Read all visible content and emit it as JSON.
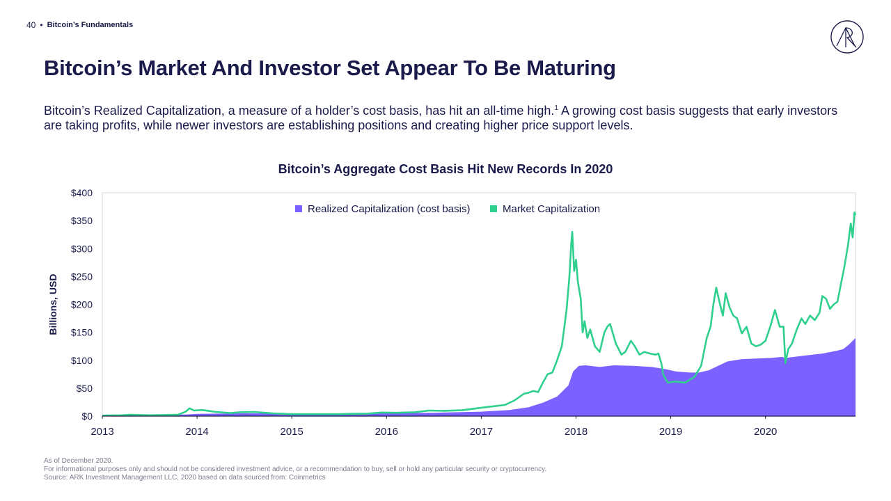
{
  "header": {
    "page_number": "40",
    "separator": "•",
    "section": "Bitcoin’s Fundamentals",
    "logo_icon": "ark-logo-icon"
  },
  "title": "Bitcoin’s Market And Investor Set Appear To Be Maturing",
  "description": {
    "text_before": "Bitcoin’s Realized Capitalization, a measure of a holder’s cost basis, has hit an all-time high.",
    "footnote_marker": "1",
    "text_after": " A growing cost basis suggests that early investors are taking profits, while newer investors are establishing positions and creating higher price support levels."
  },
  "chart_data": {
    "type": "area",
    "title": "Bitcoin’s Aggregate Cost Basis Hit New Records In 2020",
    "xlabel": "",
    "ylabel": "Billions, USD",
    "x_tick_labels": [
      "2013",
      "2014",
      "2015",
      "2016",
      "2017",
      "2018",
      "2019",
      "2020"
    ],
    "y_tick_labels": [
      "$0",
      "$50",
      "$100",
      "$150",
      "$200",
      "$250",
      "$300",
      "$350",
      "$400"
    ],
    "xlim": [
      2013.0,
      2020.95
    ],
    "ylim": [
      0,
      400
    ],
    "grid": false,
    "legend_position": "top-center",
    "series": [
      {
        "name": "Realized Capitalization (cost basis)",
        "style": "area",
        "color": "#7b61ff",
        "points": [
          [
            2013.0,
            1
          ],
          [
            2013.5,
            1.5
          ],
          [
            2013.9,
            3
          ],
          [
            2014.0,
            4
          ],
          [
            2014.5,
            5
          ],
          [
            2015.0,
            4.5
          ],
          [
            2015.5,
            4
          ],
          [
            2016.0,
            5
          ],
          [
            2016.5,
            6
          ],
          [
            2017.0,
            8
          ],
          [
            2017.3,
            11
          ],
          [
            2017.5,
            16
          ],
          [
            2017.65,
            24
          ],
          [
            2017.8,
            35
          ],
          [
            2017.92,
            55
          ],
          [
            2017.97,
            80
          ],
          [
            2018.03,
            90
          ],
          [
            2018.1,
            91
          ],
          [
            2018.25,
            88
          ],
          [
            2018.4,
            91
          ],
          [
            2018.6,
            90
          ],
          [
            2018.8,
            88
          ],
          [
            2018.95,
            84
          ],
          [
            2019.05,
            80
          ],
          [
            2019.2,
            78
          ],
          [
            2019.3,
            78
          ],
          [
            2019.4,
            82
          ],
          [
            2019.5,
            90
          ],
          [
            2019.6,
            98
          ],
          [
            2019.75,
            102
          ],
          [
            2019.9,
            103
          ],
          [
            2020.05,
            104
          ],
          [
            2020.18,
            106
          ],
          [
            2020.21,
            103
          ],
          [
            2020.25,
            105
          ],
          [
            2020.4,
            108
          ],
          [
            2020.6,
            112
          ],
          [
            2020.75,
            117
          ],
          [
            2020.82,
            120
          ],
          [
            2020.88,
            128
          ],
          [
            2020.95,
            140
          ]
        ]
      },
      {
        "name": "Market Capitalization",
        "style": "line",
        "color": "#2fd08e",
        "points": [
          [
            2013.0,
            1
          ],
          [
            2013.2,
            1.5
          ],
          [
            2013.3,
            2.5
          ],
          [
            2013.5,
            1.5
          ],
          [
            2013.8,
            2.5
          ],
          [
            2013.88,
            8
          ],
          [
            2013.92,
            14
          ],
          [
            2013.97,
            10
          ],
          [
            2014.05,
            11
          ],
          [
            2014.2,
            7.5
          ],
          [
            2014.35,
            5.5
          ],
          [
            2014.45,
            7
          ],
          [
            2014.6,
            7.5
          ],
          [
            2014.8,
            5
          ],
          [
            2015.0,
            3.5
          ],
          [
            2015.3,
            3.5
          ],
          [
            2015.5,
            3.5
          ],
          [
            2015.6,
            4
          ],
          [
            2015.8,
            4.5
          ],
          [
            2015.95,
            6.5
          ],
          [
            2016.1,
            6
          ],
          [
            2016.3,
            7
          ],
          [
            2016.45,
            10
          ],
          [
            2016.6,
            9.5
          ],
          [
            2016.8,
            10.5
          ],
          [
            2016.95,
            14
          ],
          [
            2017.05,
            16
          ],
          [
            2017.15,
            18
          ],
          [
            2017.25,
            20
          ],
          [
            2017.35,
            28
          ],
          [
            2017.45,
            40
          ],
          [
            2017.5,
            42
          ],
          [
            2017.55,
            45
          ],
          [
            2017.6,
            43
          ],
          [
            2017.65,
            60
          ],
          [
            2017.7,
            75
          ],
          [
            2017.75,
            78
          ],
          [
            2017.8,
            100
          ],
          [
            2017.85,
            125
          ],
          [
            2017.9,
            190
          ],
          [
            2017.93,
            250
          ],
          [
            2017.95,
            310
          ],
          [
            2017.96,
            330
          ],
          [
            2017.98,
            260
          ],
          [
            2018.0,
            280
          ],
          [
            2018.02,
            240
          ],
          [
            2018.05,
            210
          ],
          [
            2018.07,
            150
          ],
          [
            2018.09,
            170
          ],
          [
            2018.12,
            140
          ],
          [
            2018.15,
            155
          ],
          [
            2018.2,
            125
          ],
          [
            2018.25,
            115
          ],
          [
            2018.3,
            150
          ],
          [
            2018.33,
            160
          ],
          [
            2018.36,
            165
          ],
          [
            2018.42,
            130
          ],
          [
            2018.48,
            110
          ],
          [
            2018.52,
            115
          ],
          [
            2018.58,
            135
          ],
          [
            2018.62,
            125
          ],
          [
            2018.67,
            110
          ],
          [
            2018.72,
            115
          ],
          [
            2018.78,
            112
          ],
          [
            2018.84,
            110
          ],
          [
            2018.87,
            112
          ],
          [
            2018.9,
            95
          ],
          [
            2018.92,
            75
          ],
          [
            2018.95,
            65
          ],
          [
            2018.97,
            60
          ],
          [
            2019.05,
            62
          ],
          [
            2019.15,
            60
          ],
          [
            2019.25,
            70
          ],
          [
            2019.32,
            90
          ],
          [
            2019.38,
            140
          ],
          [
            2019.42,
            160
          ],
          [
            2019.45,
            200
          ],
          [
            2019.48,
            230
          ],
          [
            2019.52,
            200
          ],
          [
            2019.55,
            180
          ],
          [
            2019.58,
            220
          ],
          [
            2019.62,
            195
          ],
          [
            2019.66,
            180
          ],
          [
            2019.7,
            175
          ],
          [
            2019.75,
            148
          ],
          [
            2019.8,
            160
          ],
          [
            2019.85,
            130
          ],
          [
            2019.9,
            125
          ],
          [
            2019.95,
            128
          ],
          [
            2020.0,
            135
          ],
          [
            2020.05,
            160
          ],
          [
            2020.1,
            190
          ],
          [
            2020.15,
            160
          ],
          [
            2020.19,
            160
          ],
          [
            2020.21,
            95
          ],
          [
            2020.24,
            120
          ],
          [
            2020.28,
            130
          ],
          [
            2020.33,
            155
          ],
          [
            2020.38,
            175
          ],
          [
            2020.42,
            165
          ],
          [
            2020.47,
            180
          ],
          [
            2020.52,
            172
          ],
          [
            2020.57,
            185
          ],
          [
            2020.6,
            215
          ],
          [
            2020.64,
            210
          ],
          [
            2020.68,
            192
          ],
          [
            2020.72,
            200
          ],
          [
            2020.76,
            205
          ],
          [
            2020.8,
            240
          ],
          [
            2020.83,
            265
          ],
          [
            2020.87,
            305
          ],
          [
            2020.9,
            345
          ],
          [
            2020.92,
            320
          ],
          [
            2020.94,
            365
          ],
          [
            2020.95,
            360
          ]
        ]
      }
    ]
  },
  "footnotes": {
    "as_of": "As of December 2020.",
    "disclaimer": "For informational purposes only and should not be considered investment advice, or a recommendation to buy, sell or hold any particular security or cryptocurrency.",
    "source": "Source: ARK Investment Management LLC, 2020 based on data sourced from: Coinmetrics"
  }
}
